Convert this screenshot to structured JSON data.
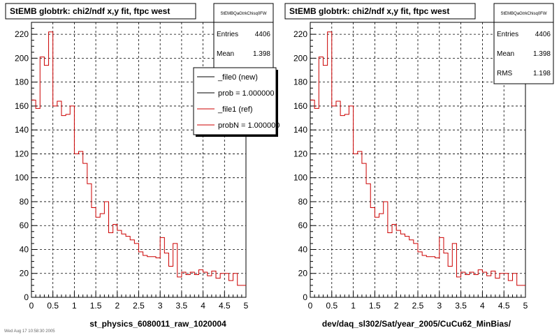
{
  "chart_data": [
    {
      "type": "line",
      "title": "StEMB globtrk: chi2/ndf x,y fit, ftpc west",
      "xlabel": "st_physics_6080011_raw_1020004",
      "ylabel": "",
      "xlim": [
        0,
        5
      ],
      "ylim": [
        0,
        230
      ],
      "grid": true,
      "xticks": [
        "0",
        "0.5",
        "1",
        "1.5",
        "2",
        "2.5",
        "3",
        "3.5",
        "4",
        "4.5",
        "5"
      ],
      "yticks": [
        "0",
        "20",
        "40",
        "60",
        "80",
        "100",
        "120",
        "140",
        "160",
        "180",
        "200",
        "220"
      ],
      "bin_width": 0.1,
      "series": [
        {
          "name": "_file1 (ref)",
          "color": "#cc0000",
          "values": [
            165,
            158,
            201,
            194,
            222,
            160,
            164,
            152,
            153,
            160,
            120,
            122,
            112,
            95,
            75,
            67,
            70,
            80,
            54,
            61,
            56,
            53,
            51,
            48,
            45,
            38,
            35,
            34,
            34,
            33,
            50,
            37,
            26,
            45,
            17,
            21,
            19,
            21,
            19,
            23,
            21,
            18,
            22,
            16,
            20,
            20,
            14,
            20,
            10,
            10
          ]
        }
      ],
      "stats": {
        "name": "StEMBQaGtrkChisq0FW",
        "rows": [
          {
            "label": "Entries",
            "value": "4406"
          },
          {
            "label": "Mean",
            "value": "1.398"
          }
        ]
      },
      "legend": {
        "placement": "top-right",
        "entries": [
          {
            "label": "_file0 (new)",
            "color": "#000000"
          },
          {
            "label": "prob = 1.000000",
            "color": "#000000"
          },
          {
            "label": "_file1 (ref)",
            "color": "#cc0000"
          },
          {
            "label": "probN = 1.000000",
            "color": "#cc0000"
          }
        ]
      }
    },
    {
      "type": "line",
      "title": "StEMB globtrk: chi2/ndf x,y fit, ftpc west",
      "xlabel": "dev/daq_sl302/Sat/year_2005/CuCu62_MinBias/",
      "ylabel": "",
      "xlim": [
        0,
        5
      ],
      "ylim": [
        0,
        230
      ],
      "grid": true,
      "xticks": [
        "0",
        "0.5",
        "1",
        "1.5",
        "2",
        "2.5",
        "3",
        "3.5",
        "4",
        "4.5",
        "5"
      ],
      "yticks": [
        "0",
        "20",
        "40",
        "60",
        "80",
        "100",
        "120",
        "140",
        "160",
        "180",
        "200",
        "220"
      ],
      "bin_width": 0.1,
      "series": [
        {
          "name": "",
          "color": "#cc0000",
          "values": [
            165,
            158,
            201,
            194,
            222,
            160,
            164,
            152,
            153,
            160,
            120,
            122,
            112,
            95,
            75,
            67,
            70,
            80,
            54,
            61,
            56,
            53,
            51,
            48,
            45,
            38,
            35,
            34,
            34,
            33,
            50,
            37,
            26,
            45,
            17,
            21,
            19,
            21,
            19,
            23,
            21,
            18,
            22,
            16,
            20,
            20,
            14,
            20,
            10,
            10
          ]
        }
      ],
      "stats": {
        "name": "StEMBQaGtrkChisq0FW",
        "rows": [
          {
            "label": "Entries",
            "value": "4406"
          },
          {
            "label": "Mean",
            "value": "1.398"
          },
          {
            "label": "RMS",
            "value": "1.198"
          }
        ]
      }
    }
  ],
  "footer_text": "Wed Aug 17 10:58:30 2005"
}
